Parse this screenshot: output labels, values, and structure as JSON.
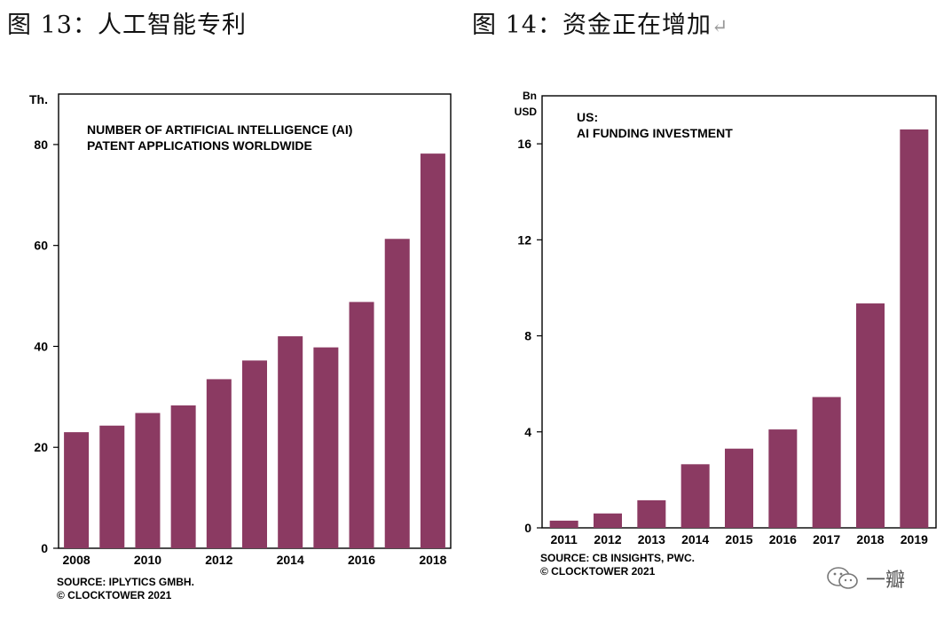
{
  "titles": {
    "fig13": "图 13：人工智能专利",
    "fig14": "图 14：资金正在增加",
    "return_glyph": "↵"
  },
  "watermark": {
    "text": "一瓣"
  },
  "colors": {
    "bar": "#8b3a62",
    "axis": "#000000"
  },
  "chart_data": [
    {
      "type": "bar",
      "title_lines": [
        "NUMBER OF ARTIFICIAL INTELLIGENCE (AI)",
        "PATENT APPLICATIONS WORLDWIDE"
      ],
      "yunit": "Th.",
      "ylim": [
        0,
        90
      ],
      "yticks": [
        0,
        20,
        40,
        60,
        80
      ],
      "categories": [
        "2008",
        "2009",
        "2010",
        "2011",
        "2012",
        "2013",
        "2014",
        "2015",
        "2016",
        "2017",
        "2018"
      ],
      "xtick_labels": [
        "2008",
        "",
        "2010",
        "",
        "2012",
        "",
        "2014",
        "",
        "2016",
        "",
        "2018"
      ],
      "values": [
        23,
        24.3,
        26.8,
        28.3,
        33.5,
        37.2,
        42,
        39.8,
        48.8,
        61.3,
        78.2
      ],
      "source_lines": [
        "SOURCE: IPLYTICS GMBH.",
        "© CLOCKTOWER 2021"
      ]
    },
    {
      "type": "bar",
      "title_lines": [
        "US:",
        "AI FUNDING INVESTMENT"
      ],
      "yunit_lines": [
        "Bn",
        "USD"
      ],
      "ylim": [
        0,
        18
      ],
      "yticks": [
        0,
        4,
        8,
        12,
        16
      ],
      "categories": [
        "2011",
        "2012",
        "2013",
        "2014",
        "2015",
        "2016",
        "2017",
        "2018",
        "2019"
      ],
      "xtick_labels": [
        "2011",
        "2012",
        "2013",
        "2014",
        "2015",
        "2016",
        "2017",
        "2018",
        "2019"
      ],
      "values": [
        0.3,
        0.6,
        1.15,
        2.65,
        3.3,
        4.1,
        5.45,
        9.35,
        16.6
      ],
      "source_lines": [
        "SOURCE: CB INSIGHTS, PWC.",
        "© CLOCKTOWER 2021"
      ]
    }
  ]
}
